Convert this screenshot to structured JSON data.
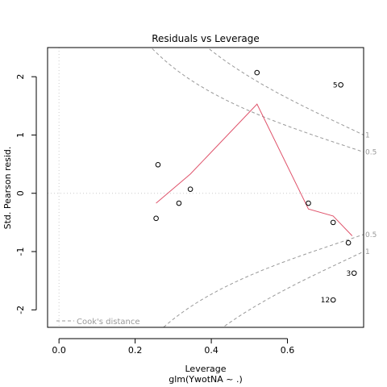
{
  "chart_data": {
    "type": "scatter",
    "title": "Residuals vs Leverage",
    "xlabel": "Leverage",
    "ylabel": "Std. Pearson resid.",
    "subtitle": "glm(YwotNA ~ .)",
    "xlim": [
      -0.03,
      0.8
    ],
    "ylim": [
      -2.3,
      2.5
    ],
    "x_ticks": [
      0.0,
      0.2,
      0.4,
      0.6
    ],
    "x_tick_labels": [
      "0.0",
      "0.2",
      "0.4",
      "0.6"
    ],
    "y_ticks": [
      -2,
      -1,
      0,
      1,
      2
    ],
    "y_tick_labels": [
      "-2",
      "-1",
      "0",
      "1",
      "2"
    ],
    "grid": false,
    "points": [
      {
        "x": 0.255,
        "y": -0.43,
        "label": ""
      },
      {
        "x": 0.26,
        "y": 0.49,
        "label": ""
      },
      {
        "x": 0.315,
        "y": -0.17,
        "label": ""
      },
      {
        "x": 0.345,
        "y": 0.07,
        "label": ""
      },
      {
        "x": 0.52,
        "y": 2.07,
        "label": ""
      },
      {
        "x": 0.655,
        "y": -0.17,
        "label": ""
      },
      {
        "x": 0.72,
        "y": -0.5,
        "label": ""
      },
      {
        "x": 0.74,
        "y": 1.86,
        "label": "5"
      },
      {
        "x": 0.76,
        "y": -0.85,
        "label": ""
      },
      {
        "x": 0.775,
        "y": -1.37,
        "label": "3"
      },
      {
        "x": 0.72,
        "y": -1.83,
        "label": "12"
      }
    ],
    "smooth_line": {
      "color": "#df536b",
      "x": [
        0.255,
        0.345,
        0.52,
        0.655,
        0.72,
        0.77
      ],
      "y": [
        -0.17,
        0.33,
        1.53,
        -0.27,
        -0.39,
        -0.73
      ]
    },
    "cooks_contours": [
      {
        "label": "0.5",
        "level": 0.5,
        "n_params": 4
      },
      {
        "label": "1",
        "level": 1,
        "n_params": 4
      }
    ],
    "reference_lines": {
      "h": 0,
      "v": 0
    },
    "legend": {
      "text": "Cook's distance",
      "position": "bottom-left"
    },
    "colors": {
      "points": "#000000",
      "smooth": "#df536b",
      "contour": "#999999",
      "reference": "#cccccc",
      "axis": "#000000"
    }
  }
}
